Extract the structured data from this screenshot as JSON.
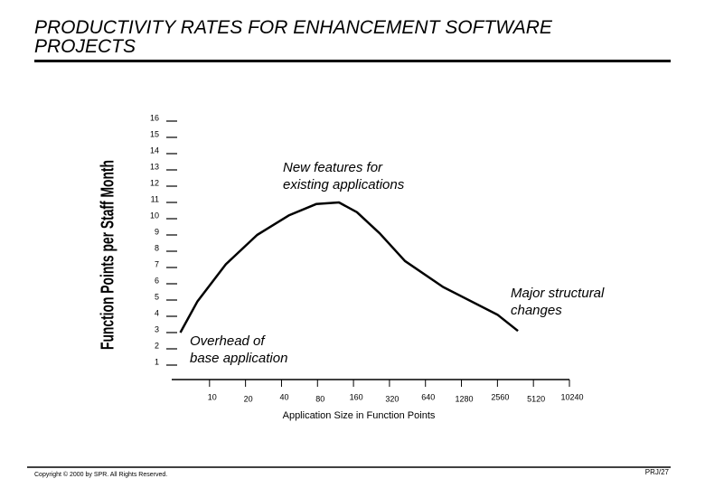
{
  "chart_data": {
    "type": "line",
    "title": "PRODUCTIVITY RATES FOR ENHANCEMENT SOFTWARE PROJECTS",
    "x_label": "Application Size in Function Points",
    "y_label": "Function Points per Staff Month",
    "x_scale": "log",
    "xlim": [
      5,
      10240
    ],
    "xticks": [
      10,
      20,
      40,
      80,
      160,
      320,
      640,
      1280,
      2560,
      5120,
      10240
    ],
    "ylim": [
      0,
      16
    ],
    "yticks": [
      1,
      2,
      3,
      4,
      5,
      6,
      7,
      8,
      9,
      10,
      11,
      12,
      13,
      14,
      15,
      16
    ],
    "series": [
      {
        "color": "#000000",
        "x": [
          5.7,
          7.9,
          13.7,
          25,
          46,
          78,
          121,
          171,
          265,
          431,
          900,
          2560,
          3800
        ],
        "values": [
          3.0,
          4.9,
          7.2,
          9.0,
          10.2,
          10.9,
          11.0,
          10.4,
          9.1,
          7.4,
          5.8,
          4.1,
          3.1
        ]
      }
    ],
    "annotations": [
      {
        "lines": [
          "New features for",
          "existing applications"
        ]
      },
      {
        "lines": [
          "Major structural",
          "changes"
        ]
      },
      {
        "lines": [
          "Overhead of",
          "base application"
        ]
      }
    ]
  },
  "footer": {
    "copyright": "Copyright © 2000 by SPR. All Rights Reserved.",
    "page": "PRJ/27"
  }
}
